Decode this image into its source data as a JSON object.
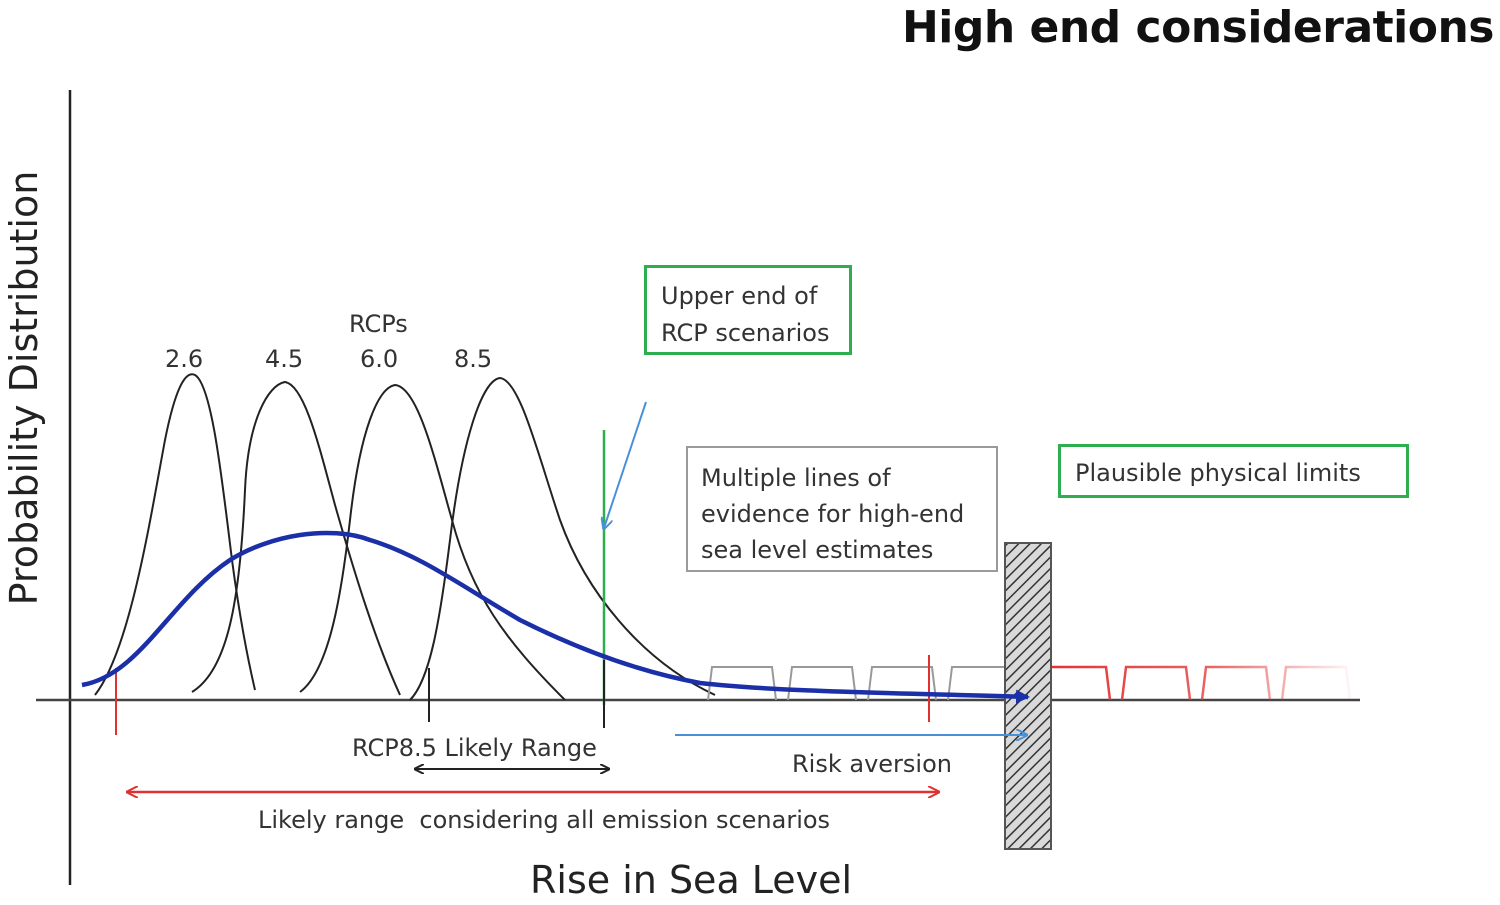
{
  "title": "High end considerations",
  "axes": {
    "y_label": "Probability Distribution",
    "x_label": "Rise in Sea Level"
  },
  "rcps": {
    "heading": "RCPs",
    "labels": [
      "2.6",
      "4.5",
      "6.0",
      "8.5"
    ]
  },
  "boxes": {
    "upper_end": [
      "Upper end of",
      "RCP scenarios"
    ],
    "multiple_lines": [
      "Multiple lines of",
      "evidence for high-end",
      "sea level estimates"
    ],
    "physical_limits": "Plausible physical limits"
  },
  "annotations": {
    "rcp85_range": "RCP8.5 Likely Range",
    "risk_aversion": "Risk aversion",
    "likely_range_all": "Likely range  considering all emission scenarios"
  },
  "colors": {
    "curve_blue": "#1a2fa8",
    "green": "#2fae4f",
    "red": "#e03131",
    "arrow_blue": "#4a90d9",
    "black": "#222222",
    "grey": "#9a9a9a"
  }
}
